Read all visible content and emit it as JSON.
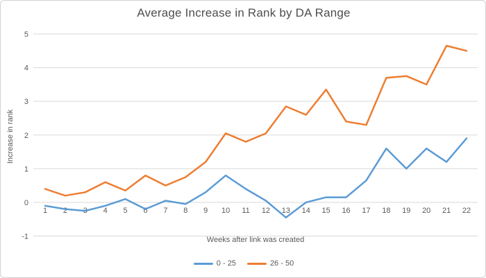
{
  "frame": {
    "background": "#ffffff",
    "border_color": "#d2d2d2"
  },
  "chart_data": {
    "type": "line",
    "title": "Average Increase in Rank by DA Range",
    "xlabel": "Weeks after link was created",
    "ylabel": "Increase in rank",
    "categories": [
      1,
      2,
      3,
      4,
      5,
      6,
      7,
      8,
      9,
      10,
      11,
      12,
      13,
      14,
      15,
      16,
      17,
      18,
      19,
      20,
      21,
      22
    ],
    "series": [
      {
        "name": "0 - 25",
        "color": "#5B9BD5",
        "values": [
          -0.1,
          -0.2,
          -0.25,
          -0.1,
          0.1,
          -0.2,
          0.05,
          -0.05,
          0.3,
          0.8,
          0.4,
          0.05,
          -0.45,
          0,
          0.15,
          0.15,
          0.65,
          1.6,
          1,
          1.6,
          1.2,
          1.9
        ]
      },
      {
        "name": "26 - 50",
        "color": "#ED7D31",
        "values": [
          0.4,
          0.2,
          0.3,
          0.6,
          0.35,
          0.8,
          0.5,
          0.75,
          1.2,
          2.05,
          1.8,
          2.05,
          2.85,
          2.6,
          3.35,
          2.4,
          2.3,
          3.7,
          3.75,
          3.5,
          4.65,
          4.5
        ]
      }
    ],
    "ylim": [
      -1,
      5
    ],
    "yticks": [
      -1,
      0,
      1,
      2,
      3,
      4,
      5
    ],
    "grid": true,
    "gridline_color": "#d9d9d9",
    "tick_text_color": "#595959",
    "legend_position": "bottom",
    "line_width": 2.5
  }
}
